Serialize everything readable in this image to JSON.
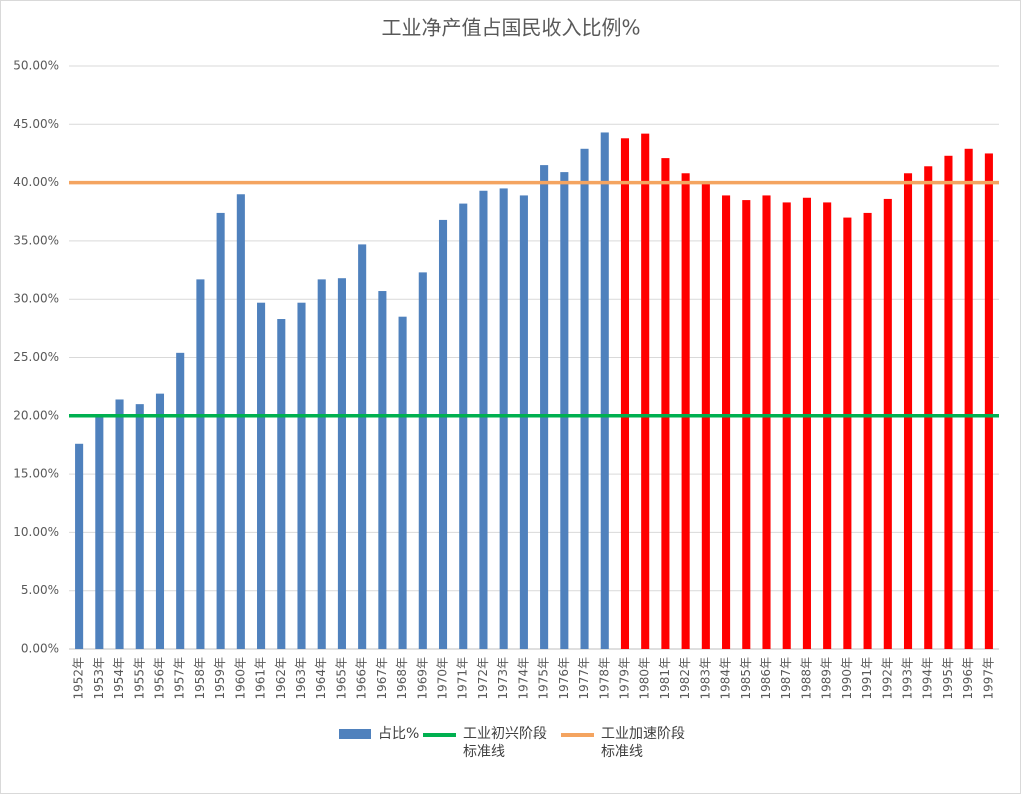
{
  "chart_data": {
    "type": "bar",
    "title": "工业净产值占国民收入比例%",
    "categories": [
      "1952年",
      "1953年",
      "1954年",
      "1955年",
      "1956年",
      "1957年",
      "1958年",
      "1959年",
      "1960年",
      "1961年",
      "1962年",
      "1963年",
      "1964年",
      "1965年",
      "1966年",
      "1967年",
      "1968年",
      "1969年",
      "1970年",
      "1971年",
      "1972年",
      "1973年",
      "1974年",
      "1975年",
      "1976年",
      "1977年",
      "1978年",
      "1979年",
      "1980年",
      "1981年",
      "1982年",
      "1983年",
      "1984年",
      "1985年",
      "1986年",
      "1987年",
      "1988年",
      "1989年",
      "1990年",
      "1991年",
      "1992年",
      "1993年",
      "1994年",
      "1995年",
      "1996年",
      "1997年"
    ],
    "series": [
      {
        "name": "占比%",
        "color": "#4f81bd",
        "values": [
          17.6,
          19.9,
          21.4,
          21.0,
          21.9,
          25.4,
          31.7,
          37.4,
          39.0,
          29.7,
          28.3,
          29.7,
          31.7,
          31.8,
          34.7,
          30.7,
          28.5,
          32.3,
          36.8,
          38.2,
          39.3,
          39.5,
          38.9,
          41.5,
          40.9,
          42.9,
          44.3,
          43.8,
          44.2,
          42.1,
          40.8,
          40.0,
          38.9,
          38.5,
          38.9,
          38.3,
          38.7,
          38.3,
          37.0,
          37.4,
          38.6,
          40.8,
          41.4,
          42.3,
          42.9,
          42.5
        ],
        "colors": [
          "#4f81bd",
          "#4f81bd",
          "#4f81bd",
          "#4f81bd",
          "#4f81bd",
          "#4f81bd",
          "#4f81bd",
          "#4f81bd",
          "#4f81bd",
          "#4f81bd",
          "#4f81bd",
          "#4f81bd",
          "#4f81bd",
          "#4f81bd",
          "#4f81bd",
          "#4f81bd",
          "#4f81bd",
          "#4f81bd",
          "#4f81bd",
          "#4f81bd",
          "#4f81bd",
          "#4f81bd",
          "#4f81bd",
          "#4f81bd",
          "#4f81bd",
          "#4f81bd",
          "#4f81bd",
          "#ff0000",
          "#ff0000",
          "#ff0000",
          "#ff0000",
          "#ff0000",
          "#ff0000",
          "#ff0000",
          "#ff0000",
          "#ff0000",
          "#ff0000",
          "#ff0000",
          "#ff0000",
          "#ff0000",
          "#ff0000",
          "#ff0000",
          "#ff0000",
          "#ff0000",
          "#ff0000",
          "#ff0000"
        ]
      }
    ],
    "reference_lines": [
      {
        "name": "工业初兴阶段标准线",
        "color": "#00b050",
        "value": 20
      },
      {
        "name": "工业加速阶段标准线",
        "color": "#f4a460",
        "value": 40
      }
    ],
    "ylim": [
      0,
      50
    ],
    "yticks": [
      {
        "value": 0,
        "label": "0.00%"
      },
      {
        "value": 5,
        "label": "5.00%"
      },
      {
        "value": 10,
        "label": "10.00%"
      },
      {
        "value": 15,
        "label": "15.00%"
      },
      {
        "value": 20,
        "label": "20.00%"
      },
      {
        "value": 25,
        "label": "25.00%"
      },
      {
        "value": 30,
        "label": "30.00%"
      },
      {
        "value": 35,
        "label": "35.00%"
      },
      {
        "value": 40,
        "label": "40.00%"
      },
      {
        "value": 45,
        "label": "45.00%"
      },
      {
        "value": 50,
        "label": "50.00%"
      }
    ],
    "grid": true
  }
}
